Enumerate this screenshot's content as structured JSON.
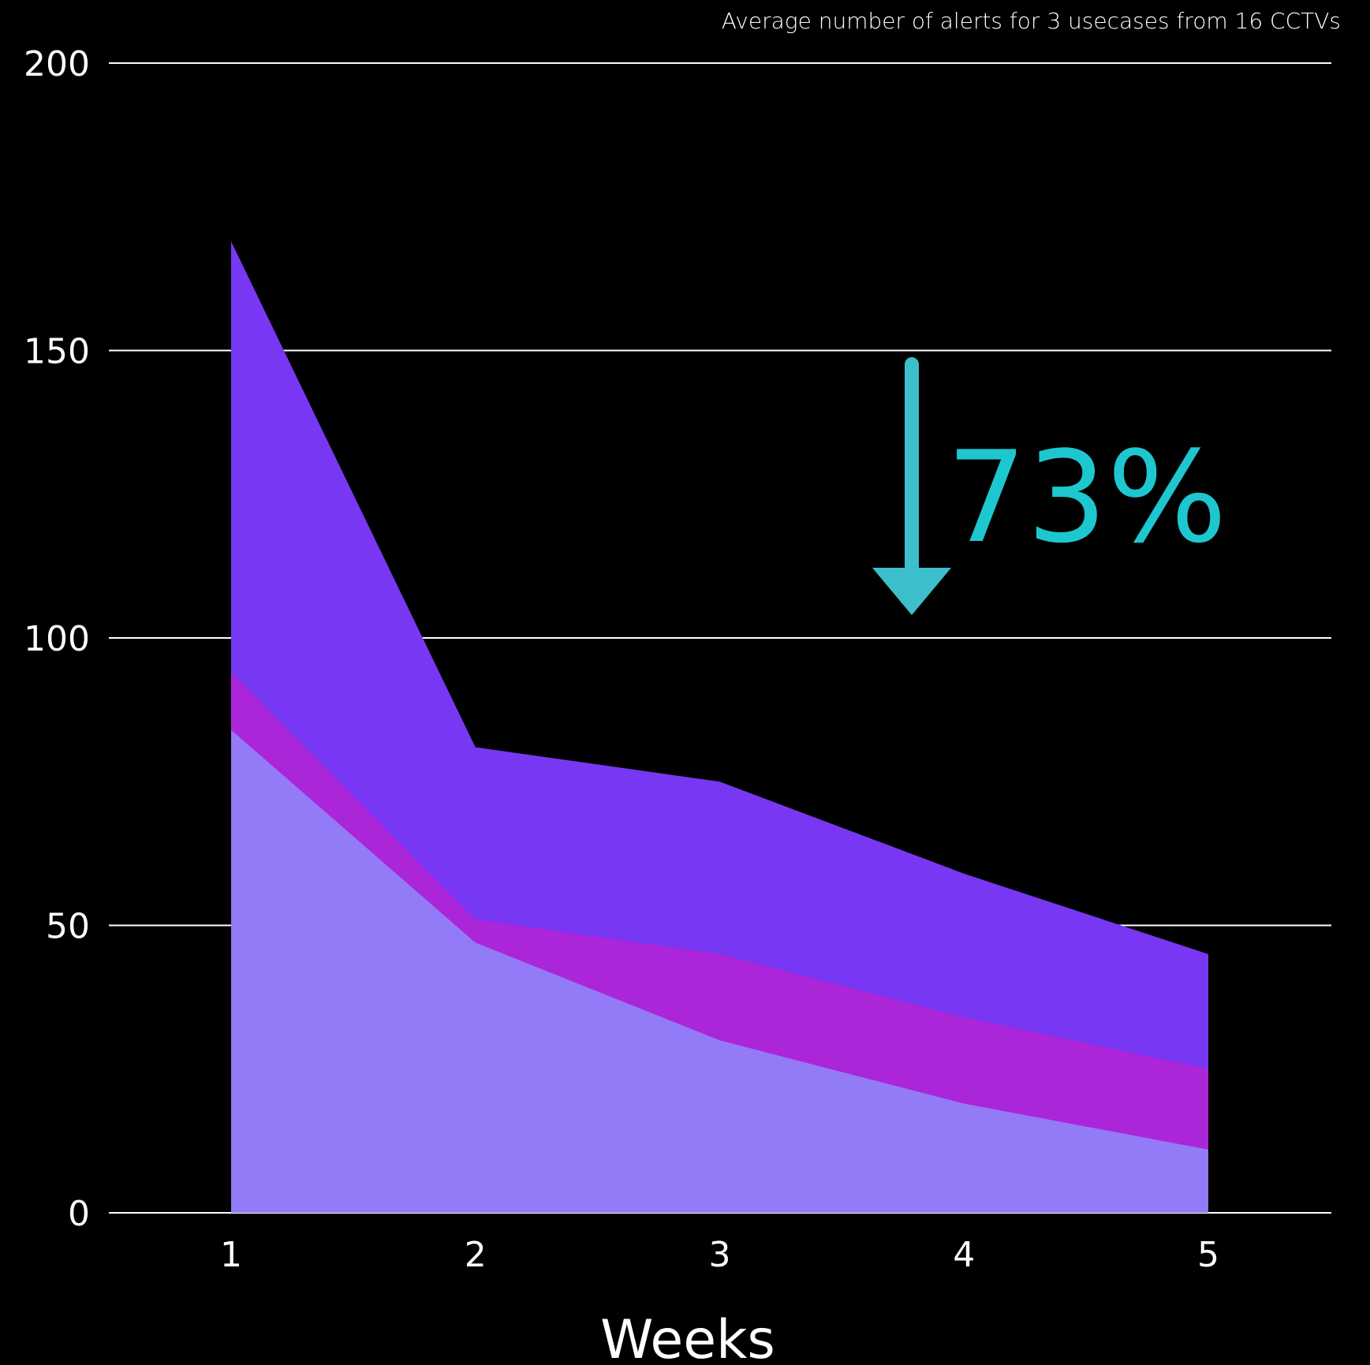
{
  "chart_data": {
    "type": "area",
    "subtitle": "Average number of alerts for 3 usecases from 16 CCTVs",
    "xlabel": "Weeks",
    "ylabel": "",
    "x": [
      1,
      2,
      3,
      4,
      5
    ],
    "x_tick_labels": [
      "1",
      "2",
      "3",
      "4",
      "5"
    ],
    "y_ticks": [
      0,
      50,
      100,
      150,
      200
    ],
    "y_tick_labels": [
      "0",
      "50",
      "100",
      "150",
      "200"
    ],
    "ylim": [
      0,
      200
    ],
    "grid": true,
    "stacked": false,
    "layers": [
      {
        "values": [
          169,
          81,
          75,
          59,
          45
        ],
        "color": "#7837f2"
      },
      {
        "values": [
          94,
          51,
          45,
          34,
          25
        ],
        "color": "#ab25d9"
      },
      {
        "values": [
          84,
          47,
          30,
          19,
          11
        ],
        "color": "#937af7"
      }
    ],
    "annotation": {
      "text": "73%",
      "color": "#1ec7cf",
      "arrow_color": "#3dbfcb",
      "arrow_direction": "down"
    }
  }
}
